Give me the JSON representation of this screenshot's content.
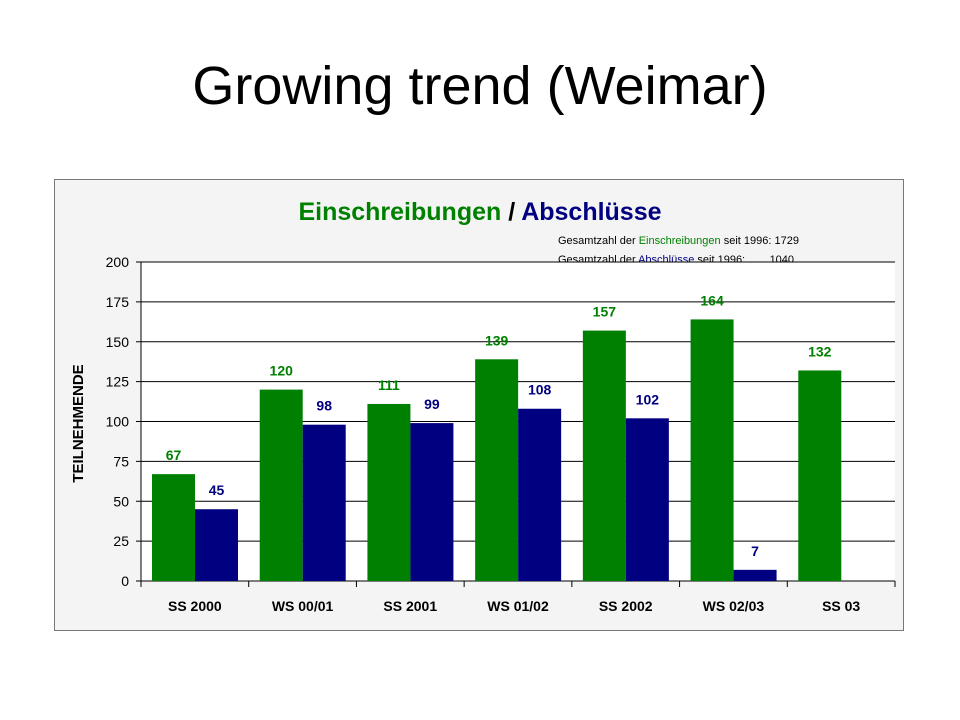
{
  "slide": {
    "title": "Growing trend (Weimar)"
  },
  "colors": {
    "einschreibungen": "#008000",
    "abschluesse": "#000080",
    "plot_bg": "#ffffff",
    "frame_bg": "#f4f4f4"
  },
  "chart_data": {
    "type": "bar",
    "title_parts": [
      "Einschreibungen",
      " / ",
      "Abschlüsse"
    ],
    "ylabel": "TEILNEHMENDE",
    "xlabel": "",
    "ylim": [
      0,
      200
    ],
    "yticks": [
      0,
      25,
      50,
      75,
      100,
      125,
      150,
      175,
      200
    ],
    "grid": true,
    "categories": [
      "SS 2000",
      "WS 00/01",
      "SS 2001",
      "WS 01/02",
      "SS 2002",
      "WS 02/03",
      "SS 03"
    ],
    "series": [
      {
        "key": "einschreibungen",
        "values": [
          67,
          120,
          111,
          139,
          157,
          164,
          132
        ]
      },
      {
        "key": "abschluesse",
        "values": [
          45,
          98,
          99,
          108,
          102,
          7,
          null
        ]
      }
    ],
    "annotations": [
      {
        "prefix": "Gesamtzahl der ",
        "term": "Einschreibungen",
        "suffix": " seit 1996: 1729",
        "color": "#008000"
      },
      {
        "prefix": "Gesamtzahl der ",
        "term": "Abschlüsse",
        "suffix": " seit 1996:        1040",
        "color": "#000080"
      }
    ]
  }
}
